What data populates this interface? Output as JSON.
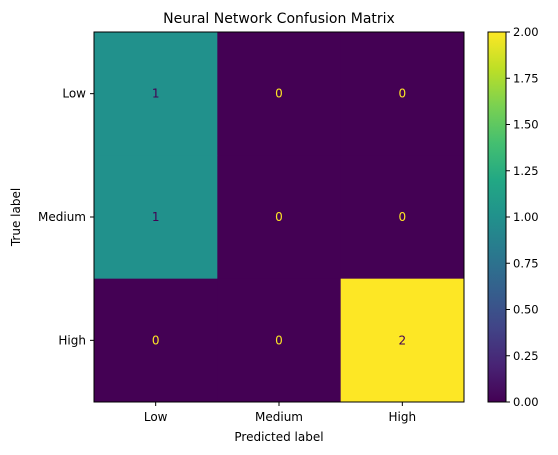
{
  "chart_data": {
    "type": "heatmap",
    "title": "Neural Network Confusion Matrix",
    "xlabel": "Predicted label",
    "ylabel": "True label",
    "x_categories": [
      "Low",
      "Medium",
      "High"
    ],
    "y_categories": [
      "Low",
      "Medium",
      "High"
    ],
    "values": [
      [
        1,
        0,
        0
      ],
      [
        1,
        0,
        0
      ],
      [
        0,
        0,
        2
      ]
    ],
    "cell_labels": [
      [
        "1",
        "0",
        "0"
      ],
      [
        "1",
        "0",
        "0"
      ],
      [
        "0",
        "0",
        "2"
      ]
    ],
    "colormap": "viridis",
    "colorbar": {
      "range": [
        0.0,
        2.0
      ],
      "ticks": [
        0.0,
        0.25,
        0.5,
        0.75,
        1.0,
        1.25,
        1.5,
        1.75,
        2.0
      ],
      "tick_labels": [
        "0.00",
        "0.25",
        "0.50",
        "0.75",
        "1.00",
        "1.25",
        "1.50",
        "1.75",
        "2.00"
      ]
    },
    "colors": {
      "low": "#440154",
      "mid": "#21918c",
      "high": "#fde725",
      "text_on_dark": "#fde725",
      "text_on_light": "#440154"
    }
  }
}
